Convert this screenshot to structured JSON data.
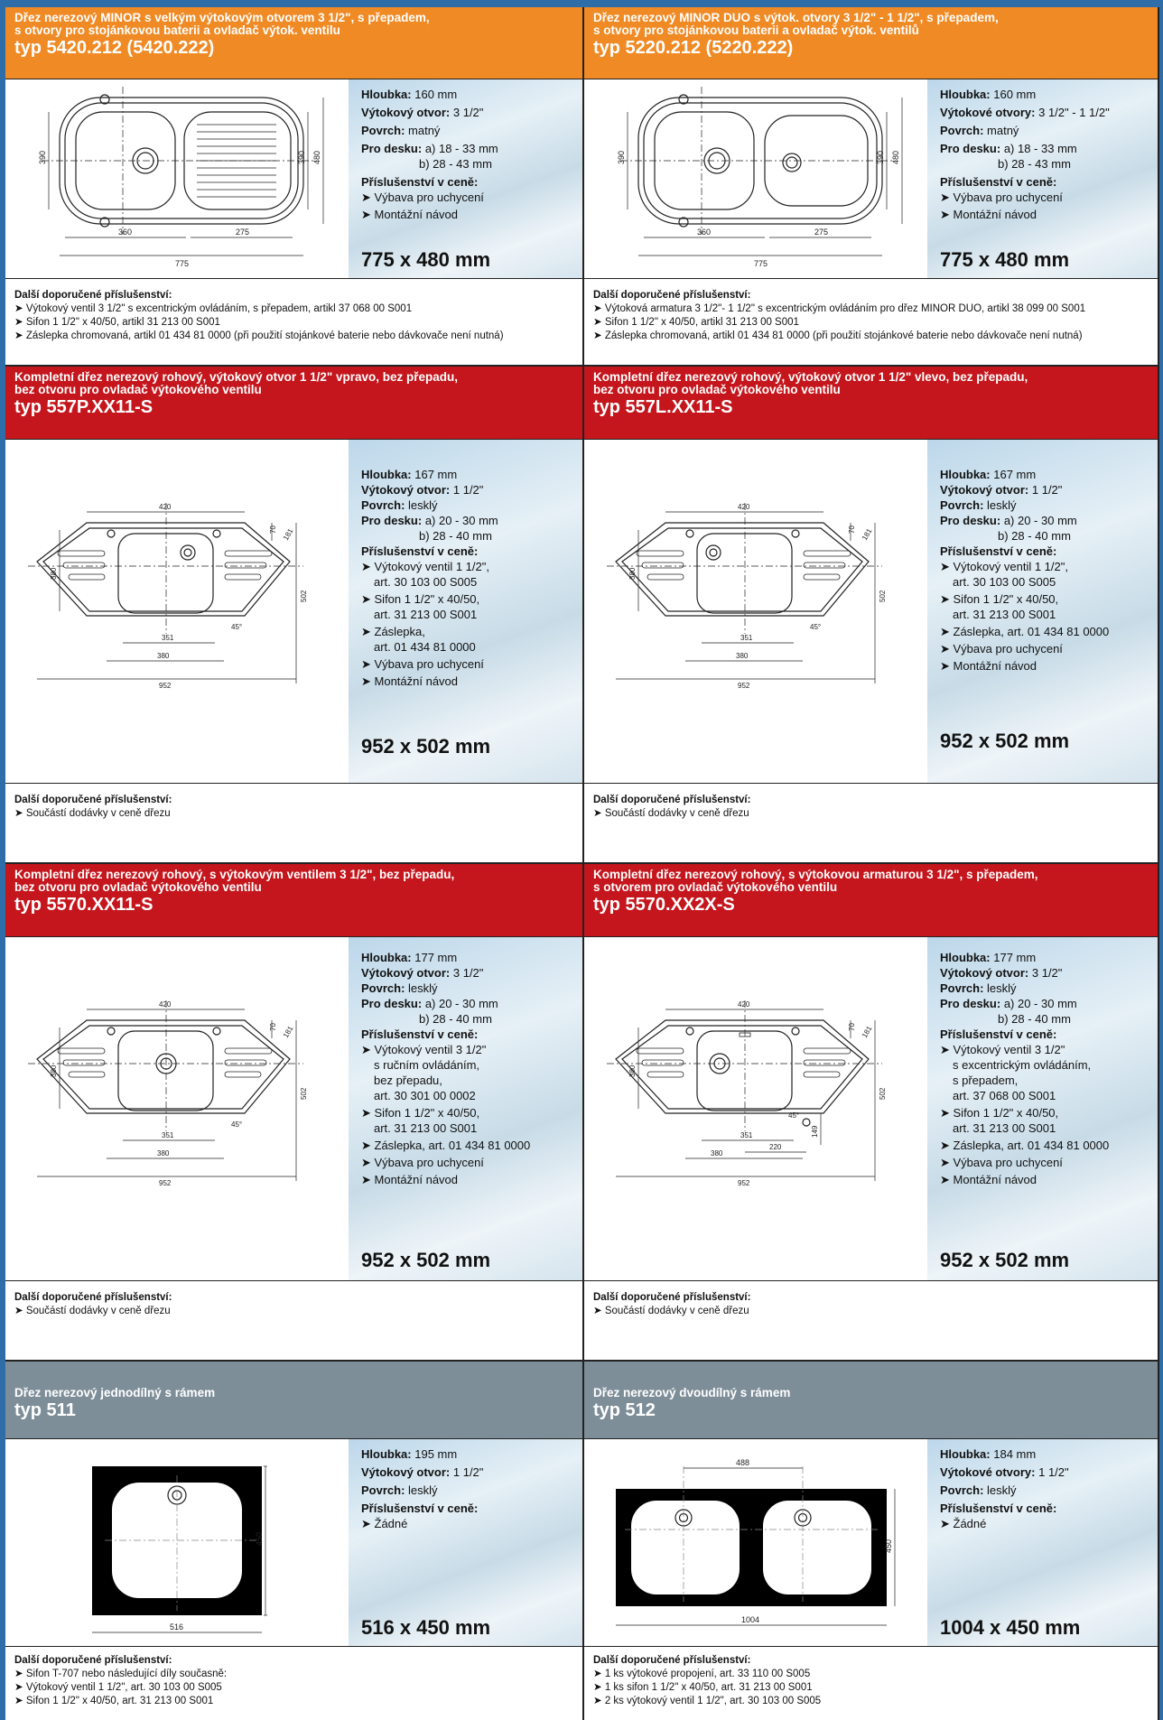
{
  "labels": {
    "hloubka": "Hloubka:",
    "vytokovy_otvor": "Výtokový otvor:",
    "vytokove_otvory": "Výtokové otvory:",
    "povrch": "Povrch:",
    "pro_desku": "Pro desku:",
    "prislusenstvi": "Příslušenství v ceně:",
    "dalsi": "Další doporučené příslušenství:"
  },
  "colors": {
    "orange": "#f08a24",
    "red": "#c4161c",
    "gray": "#7e8e99",
    "frame": "#2f6da8"
  },
  "panels": [
    {
      "title": "Dřez nerezový MINOR s velkým výtokovým otvorem 3 1/2\", s přepadem,\ns otvory pro stojánkovou baterii a ovladač výtok. ventilu",
      "type": "typ 5420.212 (5420.222)",
      "depth": "160 mm",
      "outlet": "3 1/2\"",
      "surface": "matný",
      "desk_a": "a) 18 - 33 mm",
      "desk_b": "b) 28 - 43 mm",
      "acc": [
        "Výbava pro uchycení",
        "Montážní návod"
      ],
      "size": "775 x 480 mm",
      "extra": [
        "Výtokový ventil 3 1/2\" s excentrickým ovládáním, s přepadem, artikl  37 068 00 S001",
        "Sifon 1 1/2\" x 40/50, artikl  31 213 00 S001",
        "Záslepka chromovaná, artikl  01 434 81 0000 (při použití stojánkové baterie nebo dávkovače není nutná)"
      ],
      "dims": [
        "390",
        "390",
        "480",
        "360",
        "275",
        "775"
      ]
    },
    {
      "title": "Dřez nerezový MINOR DUO s výtok. otvory 3 1/2\" - 1 1/2\", s přepadem,\ns otvory pro stojánkovou baterii a ovladač výtok. ventilů",
      "type": "typ 5220.212 (5220.222)",
      "depth": "160 mm",
      "outlet": "3 1/2\" - 1 1/2\"",
      "surface": "matný",
      "desk_a": "a) 18 - 33 mm",
      "desk_b": "b) 28 - 43 mm",
      "acc": [
        "Výbava pro uchycení",
        "Montážní návod"
      ],
      "size": "775 x 480 mm",
      "extra": [
        "Výtoková armatura 3 1/2\"- 1 1/2\" s excentrickým ovládáním pro dřez MINOR DUO, artikl  38 099 00 S001",
        "Sifon 1 1/2\" x 40/50, artikl  31 213 00 S001",
        "Záslepka chromovaná, artikl  01 434 81 0000 (při použití stojánkové baterie nebo dávkovače není nutná)"
      ],
      "dims": [
        "390",
        "390",
        "480",
        "360",
        "275",
        "775"
      ]
    },
    {
      "title": "Kompletní dřez nerezový rohový,  výtokový otvor 1 1/2\" vpravo, bez přepadu,\nbez otvoru pro ovladač výtokového ventilu",
      "type": "typ 557P.XX11-S",
      "depth": "167 mm",
      "outlet": "1 1/2\"",
      "surface": "lesklý",
      "desk_a": "a) 20 - 30 mm",
      "desk_b": "b) 28 - 40 mm",
      "acc": [
        "Výtokový ventil 1 1/2\",\nart. 30 103 00 S005",
        "Sifon 1 1/2\" x 40/50,\nart. 31 213 00 S001",
        "Záslepka,\nart. 01 434 81 0000",
        "Výbava pro uchycení",
        "Montážní návod"
      ],
      "size": "952 x 502 mm",
      "extra": [
        "Součástí dodávky v ceně dřezu"
      ],
      "dims": [
        "420",
        "70",
        "181",
        "502",
        "380",
        "351",
        "380",
        "952",
        "45°"
      ]
    },
    {
      "title": "Kompletní dřez nerezový rohový,  výtokový otvor 1 1/2\" vlevo, bez přepadu,\nbez otvoru pro ovladač výtokového ventilu",
      "type": "typ 557L.XX11-S",
      "depth": "167 mm",
      "outlet": "1 1/2\"",
      "surface": "lesklý",
      "desk_a": "a) 20 - 30 mm",
      "desk_b": "b) 28 - 40 mm",
      "acc": [
        "Výtokový ventil 1 1/2\",\nart. 30 103 00 S005",
        "Sifon 1 1/2\" x 40/50,\nart. 31 213 00 S001",
        "Záslepka, art. 01 434 81 0000",
        "Výbava pro uchycení",
        "Montážní návod"
      ],
      "size": "952 x 502 mm",
      "extra": [
        "Součástí dodávky v ceně dřezu"
      ],
      "dims": [
        "420",
        "70",
        "181",
        "502",
        "380",
        "351",
        "380",
        "952",
        "45°"
      ]
    },
    {
      "title": "Kompletní dřez nerezový rohový, s výtokovým ventilem 3 1/2\", bez přepadu,\nbez otvoru pro ovladač výtokového ventilu",
      "type": "typ 5570.XX11-S",
      "depth": "177 mm",
      "outlet": "3 1/2\"",
      "surface": "lesklý",
      "desk_a": "a) 20 - 30 mm",
      "desk_b": "b) 28 - 40 mm",
      "acc": [
        "Výtokový ventil 3 1/2\"\ns ručním ovládáním,\nbez přepadu,\nart. 30 301 00 0002",
        "Sifon 1 1/2\" x 40/50,\nart. 31 213 00 S001",
        "Záslepka, art. 01 434 81 0000",
        "Výbava pro uchycení",
        "Montážní návod"
      ],
      "size": "952 x 502 mm",
      "extra": [
        "Součástí dodávky v ceně dřezu"
      ],
      "dims": [
        "420",
        "70",
        "181",
        "502",
        "380",
        "351",
        "380",
        "952",
        "45°"
      ]
    },
    {
      "title": "Kompletní dřez nerezový rohový, s výtokovou armaturou 3 1/2\", s přepadem,\ns otvorem pro ovladač výtokového ventilu",
      "type": "typ 5570.XX2X-S",
      "depth": "177 mm",
      "outlet": "3 1/2\"",
      "surface": "lesklý",
      "desk_a": "a) 20 - 30 mm",
      "desk_b": "b) 28 - 40 mm",
      "acc": [
        "Výtokový ventil 3 1/2\"\ns excentrickým ovládáním,\ns přepadem,\nart. 37 068 00 S001",
        "Sifon 1 1/2\" x 40/50,\nart. 31 213 00 S001",
        "Záslepka, art. 01 434 81 0000",
        "Výbava pro uchycení",
        "Montážní návod"
      ],
      "size": "952 x 502 mm",
      "extra": [
        "Součástí dodávky v ceně dřezu"
      ],
      "dims": [
        "420",
        "70",
        "181",
        "502",
        "380",
        "351",
        "380",
        "952",
        "45°",
        "220",
        "149"
      ]
    },
    {
      "title": "Dřez nerezový jednodílný s rámem",
      "type": "typ 511",
      "depth": "195 mm",
      "outlet": "1 1/2\"",
      "surface": "lesklý",
      "acc": [
        "Žádné"
      ],
      "size": "516 x 450 mm",
      "extra": [
        "Sifon T-707 nebo následující díly současně:",
        "Výtokový ventil 1 1/2\", art. 30 103 00 S005",
        "Sifon 1 1/2\" x 40/50, art. 31 213 00 S001"
      ],
      "dims": [
        "450",
        "516"
      ]
    },
    {
      "title": "Dřez nerezový dvoudílný s rámem",
      "type": "typ 512",
      "depth": "184 mm",
      "outlet": "1 1/2\"",
      "surface": "lesklý",
      "acc": [
        "Žádné"
      ],
      "size": "1004 x 450 mm",
      "extra": [
        "1 ks výtokové propojení, art. 33 110 00 S005",
        "1 ks sifon 1 1/2\" x 40/50, art. 31 213 00 S001",
        "2 ks výtokový ventil 1 1/2\", art. 30 103 00 S005"
      ],
      "dims": [
        "488",
        "450",
        "1004"
      ]
    }
  ]
}
